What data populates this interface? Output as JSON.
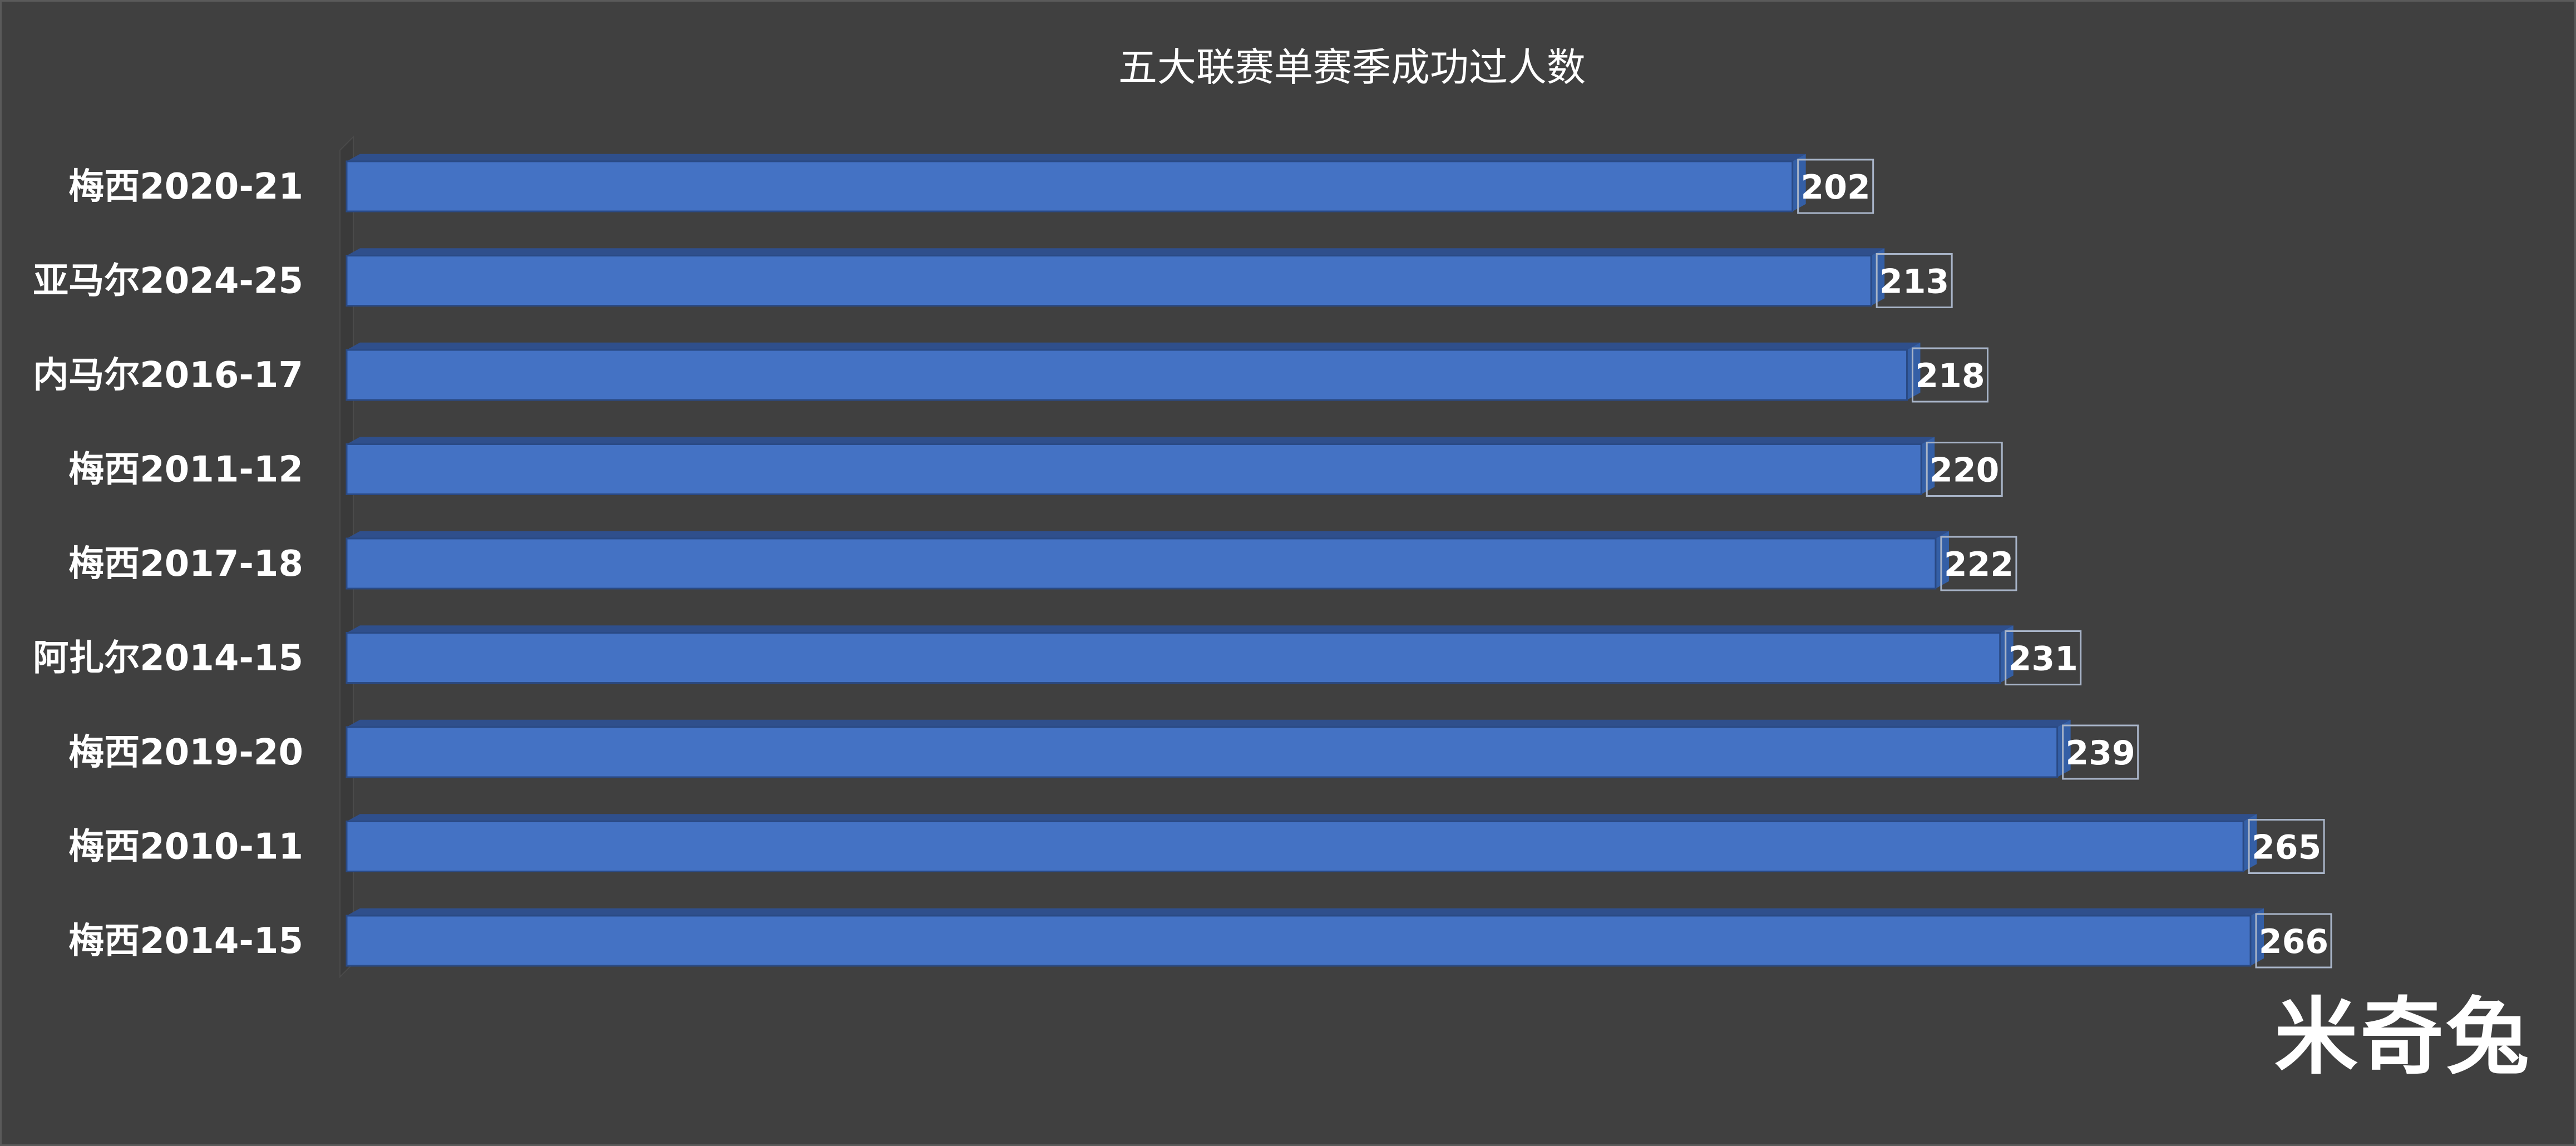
{
  "chart_data": {
    "type": "bar",
    "orientation": "horizontal",
    "title": "五大联赛单赛季成功过人数",
    "categories": [
      "梅西2020-21",
      "亚马尔2024-25",
      "内马尔2016-17",
      "梅西2011-12",
      "梅西2017-18",
      "阿扎尔2014-15",
      "梅西2019-20",
      "梅西2010-11",
      "梅西2014-15"
    ],
    "values": [
      202,
      213,
      218,
      220,
      222,
      231,
      239,
      265,
      266
    ],
    "data_labels": [
      "202",
      "213",
      "218",
      "220",
      "222",
      "231",
      "239",
      "265",
      "266"
    ],
    "xlim": [
      0,
      266
    ],
    "grid": false,
    "legend": "none",
    "bar_color": "#4472c4",
    "bar_top_color": "#2f4f8c",
    "bar_edge_color": "#2a4a85",
    "background_color": "#404040"
  },
  "watermark": "米奇兔"
}
